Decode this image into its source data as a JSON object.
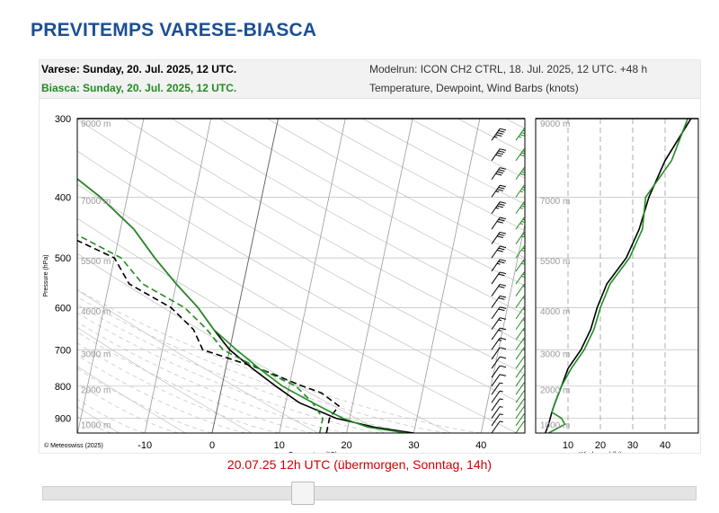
{
  "page_title": "PREVITEMPS VARESE-BIASCA",
  "header": {
    "line1": "Varese: Sunday, 20. Jul. 2025, 12 UTC.",
    "line2": "Biasca: Sunday, 20. Jul. 2025, 12 UTC.",
    "modelrun": "Modelrun: ICON CH2 CTRL, 18. Jul. 2025, 12 UTC. +48 h",
    "variables": "Temperature, Dewpoint, Wind Barbs (knots)"
  },
  "copyright": "© Meteoswiss (2025)",
  "date_caption": "20.07.25 12h UTC (übermorgen, Sonntag, 14h)",
  "slider": {
    "value_fraction": 0.4
  },
  "colors": {
    "title": "#1b4f93",
    "varese": "#000000",
    "biasca": "#228b22",
    "caption": "#cc0000"
  },
  "chart_data": [
    {
      "type": "line",
      "subtype": "skew-t",
      "xlabel": "Temperature (°C)",
      "ylabel": "Pressure (hPa)",
      "x_ticks": [
        "-10",
        "0",
        "10",
        "20",
        "30",
        "40"
      ],
      "y_ticks": [
        "300",
        "400",
        "500",
        "600",
        "700",
        "800",
        "900"
      ],
      "xlim": [
        -20,
        46
      ],
      "ylim": [
        950,
        300
      ],
      "y_scale": "log",
      "height_labels": [
        "9000 m",
        "7000 m",
        "5500 m",
        "4000 m",
        "3000 m",
        "2000 m",
        "1000 m"
      ],
      "series": [
        {
          "name": "Varese",
          "kind": "temperature",
          "color": "#000000",
          "points": [
            [
              950,
              30
            ],
            [
              930,
              24
            ],
            [
              900,
              18
            ],
            [
              850,
              12
            ],
            [
              800,
              8
            ],
            [
              750,
              4
            ],
            [
              700,
              0
            ],
            [
              650,
              -3
            ],
            [
              600,
              -6
            ],
            [
              550,
              -10
            ],
            [
              500,
              -14
            ],
            [
              450,
              -18
            ],
            [
              400,
              -24
            ],
            [
              350,
              -32
            ],
            [
              300,
              -40
            ]
          ]
        },
        {
          "name": "Varese",
          "kind": "dewpoint",
          "color": "#000000",
          "points": [
            [
              950,
              17
            ],
            [
              900,
              17
            ],
            [
              860,
              18
            ],
            [
              820,
              15
            ],
            [
              800,
              12
            ],
            [
              750,
              5
            ],
            [
              700,
              -4
            ],
            [
              650,
              -6
            ],
            [
              600,
              -10
            ],
            [
              550,
              -17
            ],
            [
              500,
              -20
            ],
            [
              450,
              -30
            ],
            [
              420,
              -32
            ],
            [
              400,
              -30
            ],
            [
              370,
              -30
            ],
            [
              340,
              -33
            ],
            [
              300,
              -42
            ]
          ]
        },
        {
          "name": "Biasca",
          "kind": "temperature",
          "color": "#228b22",
          "points": [
            [
              950,
              29
            ],
            [
              930,
              23
            ],
            [
              900,
              19
            ],
            [
              850,
              14
            ],
            [
              800,
              9
            ],
            [
              750,
              5
            ],
            [
              700,
              1
            ],
            [
              650,
              -3
            ],
            [
              600,
              -6
            ],
            [
              550,
              -10
            ],
            [
              500,
              -14
            ],
            [
              450,
              -18
            ],
            [
              400,
              -24
            ],
            [
              350,
              -32
            ],
            [
              300,
              -40
            ]
          ]
        },
        {
          "name": "Biasca",
          "kind": "dewpoint",
          "color": "#228b22",
          "points": [
            [
              950,
              16
            ],
            [
              900,
              16
            ],
            [
              850,
              14
            ],
            [
              800,
              11
            ],
            [
              750,
              5
            ],
            [
              700,
              -1
            ],
            [
              650,
              -4
            ],
            [
              600,
              -8
            ],
            [
              550,
              -15
            ],
            [
              500,
              -19
            ],
            [
              450,
              -28
            ],
            [
              420,
              -31
            ],
            [
              400,
              -30
            ],
            [
              370,
              -30
            ],
            [
              340,
              -33
            ],
            [
              300,
              -42
            ]
          ]
        }
      ]
    },
    {
      "type": "line",
      "subtype": "wind-speed-profile",
      "xlabel": "Windspeed (kt)",
      "x_ticks": [
        "10",
        "20",
        "30",
        "40"
      ],
      "xlim": [
        0,
        50
      ],
      "ylim": [
        950,
        300
      ],
      "height_labels": [
        "9000 m",
        "7000 m",
        "5500 m",
        "4000 m",
        "3000 m",
        "2000 m",
        "1000 m"
      ],
      "series": [
        {
          "name": "Varese",
          "color": "#000000",
          "points": [
            [
              950,
              3
            ],
            [
              920,
              4
            ],
            [
              880,
              5
            ],
            [
              850,
              6
            ],
            [
              800,
              8
            ],
            [
              750,
              10
            ],
            [
              700,
              14
            ],
            [
              650,
              17
            ],
            [
              600,
              19
            ],
            [
              550,
              22
            ],
            [
              500,
              28
            ],
            [
              450,
              32
            ],
            [
              400,
              35
            ],
            [
              350,
              40
            ],
            [
              300,
              48
            ]
          ]
        },
        {
          "name": "Biasca",
          "color": "#228b22",
          "points": [
            [
              950,
              4
            ],
            [
              920,
              9
            ],
            [
              900,
              8
            ],
            [
              880,
              5
            ],
            [
              850,
              6
            ],
            [
              800,
              8
            ],
            [
              750,
              11
            ],
            [
              700,
              15
            ],
            [
              650,
              18
            ],
            [
              600,
              20
            ],
            [
              550,
              23
            ],
            [
              500,
              29
            ],
            [
              450,
              33
            ],
            [
              400,
              34
            ],
            [
              350,
              42
            ],
            [
              300,
              47
            ]
          ]
        }
      ]
    }
  ],
  "wind_barbs": {
    "pressures": [
      950,
      925,
      900,
      875,
      850,
      825,
      800,
      775,
      750,
      725,
      700,
      675,
      650,
      625,
      600,
      575,
      550,
      525,
      500,
      475,
      450,
      425,
      400,
      375,
      350,
      325,
      300
    ],
    "varese_kt": [
      3,
      4,
      5,
      5,
      6,
      7,
      8,
      9,
      10,
      12,
      14,
      16,
      17,
      18,
      19,
      21,
      22,
      25,
      28,
      30,
      32,
      34,
      35,
      38,
      40,
      44,
      48
    ],
    "biasca_kt": [
      4,
      8,
      8,
      5,
      6,
      7,
      8,
      9,
      11,
      13,
      15,
      16,
      18,
      19,
      20,
      22,
      23,
      26,
      29,
      31,
      33,
      33,
      34,
      38,
      42,
      45,
      47
    ]
  }
}
